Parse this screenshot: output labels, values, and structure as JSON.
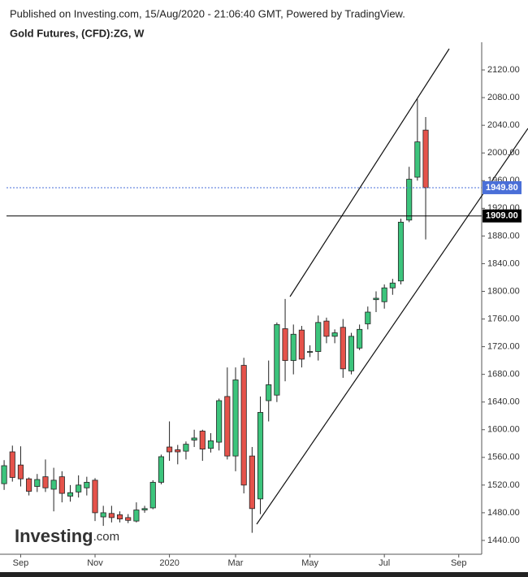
{
  "chart_data": {
    "type": "candlestick",
    "subtitle": "Published on Investing.com, 15/Aug/2020 - 21:06:40 GMT, Powered by TradingView.",
    "title": "Gold Futures, (CFD):ZG, W",
    "watermark": [
      "Investing",
      ".com"
    ],
    "categories": [
      null,
      null,
      "Sep",
      null,
      null,
      null,
      null,
      null,
      null,
      null,
      null,
      "Nov",
      null,
      null,
      null,
      null,
      null,
      null,
      null,
      null,
      "2020",
      null,
      null,
      null,
      null,
      null,
      null,
      null,
      "Mar",
      null,
      null,
      null,
      null,
      null,
      null,
      null,
      null,
      "May",
      null,
      null,
      null,
      null,
      null,
      null,
      null,
      null,
      "Jul",
      null,
      null,
      null,
      null,
      null,
      null,
      null,
      null,
      "Sep",
      null
    ],
    "open": [
      1522,
      1568,
      1549,
      1529,
      1518,
      1532,
      1514,
      1532,
      1504,
      1510,
      1516,
      1527,
      1474,
      1479,
      1477,
      1473,
      1468,
      1484,
      1487,
      1524,
      1575,
      1571,
      1569,
      1585,
      1598,
      1573,
      1582,
      1648,
      1562,
      1693,
      1562,
      1500,
      1642,
      1650,
      1746,
      1700,
      1744,
      1712,
      1713,
      1757,
      1735,
      1748,
      1685,
      1718,
      1753,
      1788,
      1785,
      1805,
      1815,
      1903,
      1965,
      2033,
      null,
      null,
      null,
      null,
      null
    ],
    "high": [
      1556,
      1577,
      1576,
      1531,
      1536,
      1557,
      1545,
      1540,
      1520,
      1534,
      1532,
      1530,
      1490,
      1490,
      1482,
      1478,
      1495,
      1490,
      1527,
      1564,
      1612,
      1578,
      1583,
      1600,
      1600,
      1595,
      1645,
      1690,
      1690,
      1704,
      1575,
      1648,
      1700,
      1755,
      1789,
      1752,
      1750,
      1722,
      1765,
      1762,
      1745,
      1760,
      1740,
      1752,
      1778,
      1800,
      1810,
      1818,
      1905,
      1980,
      2078,
      2052,
      null,
      null,
      null,
      null,
      null
    ],
    "low": [
      1513,
      1525,
      1518,
      1505,
      1510,
      1510,
      1482,
      1495,
      1496,
      1502,
      1505,
      1468,
      1461,
      1466,
      1466,
      1465,
      1466,
      1480,
      1485,
      1521,
      1555,
      1550,
      1557,
      1575,
      1555,
      1567,
      1570,
      1557,
      1540,
      1508,
      1451,
      1478,
      1612,
      1640,
      1670,
      1680,
      1690,
      1705,
      1700,
      1725,
      1725,
      1675,
      1680,
      1715,
      1745,
      1770,
      1775,
      1795,
      1810,
      1900,
      1960,
      1875,
      null,
      null,
      null,
      null,
      null
    ],
    "close": [
      1548,
      1531,
      1529,
      1511,
      1528,
      1516,
      1527,
      1508,
      1509,
      1520,
      1524,
      1480,
      1480,
      1473,
      1471,
      1469,
      1484,
      1486,
      1524,
      1561,
      1568,
      1568,
      1579,
      1588,
      1572,
      1584,
      1642,
      1562,
      1672,
      1520,
      1486,
      1625,
      1665,
      1752,
      1700,
      1738,
      1702,
      1713,
      1755,
      1735,
      1740,
      1688,
      1735,
      1745,
      1770,
      1790,
      1805,
      1812,
      1900,
      1962,
      2016,
      1949.8,
      null,
      null,
      null,
      null,
      null
    ],
    "up_color": "#3cc47c",
    "down_color": "#e5534b",
    "ylim": [
      1420,
      2160
    ],
    "yticks": [
      {
        "value": 1440,
        "label": "1440.00"
      },
      {
        "value": 1480,
        "label": "1480.00"
      },
      {
        "value": 1520,
        "label": "1520.00"
      },
      {
        "value": 1560,
        "label": "1560.00"
      },
      {
        "value": 1600,
        "label": "1600.00"
      },
      {
        "value": 1640,
        "label": "1640.00"
      },
      {
        "value": 1680,
        "label": "1680.00"
      },
      {
        "value": 1720,
        "label": "1720.00"
      },
      {
        "value": 1760,
        "label": "1760.00"
      },
      {
        "value": 1800,
        "label": "1800.00"
      },
      {
        "value": 1840,
        "label": "1840.00"
      },
      {
        "value": 1880,
        "label": "1880.00"
      },
      {
        "value": 1920,
        "label": "1920.00"
      },
      {
        "value": 1960,
        "label": "1960.00"
      },
      {
        "value": 2000,
        "label": "2000.00"
      },
      {
        "value": 2040,
        "label": "2040.00"
      },
      {
        "value": 2080,
        "label": "2080.00"
      },
      {
        "value": 2120,
        "label": "2120.00"
      }
    ],
    "hlines": [
      {
        "value": 1949.8,
        "label": "1949.80",
        "color": "#4a6fd8",
        "style": "dotted"
      },
      {
        "value": 1909,
        "label": "1909.00",
        "color": "#000000",
        "style": "solid"
      }
    ]
  }
}
